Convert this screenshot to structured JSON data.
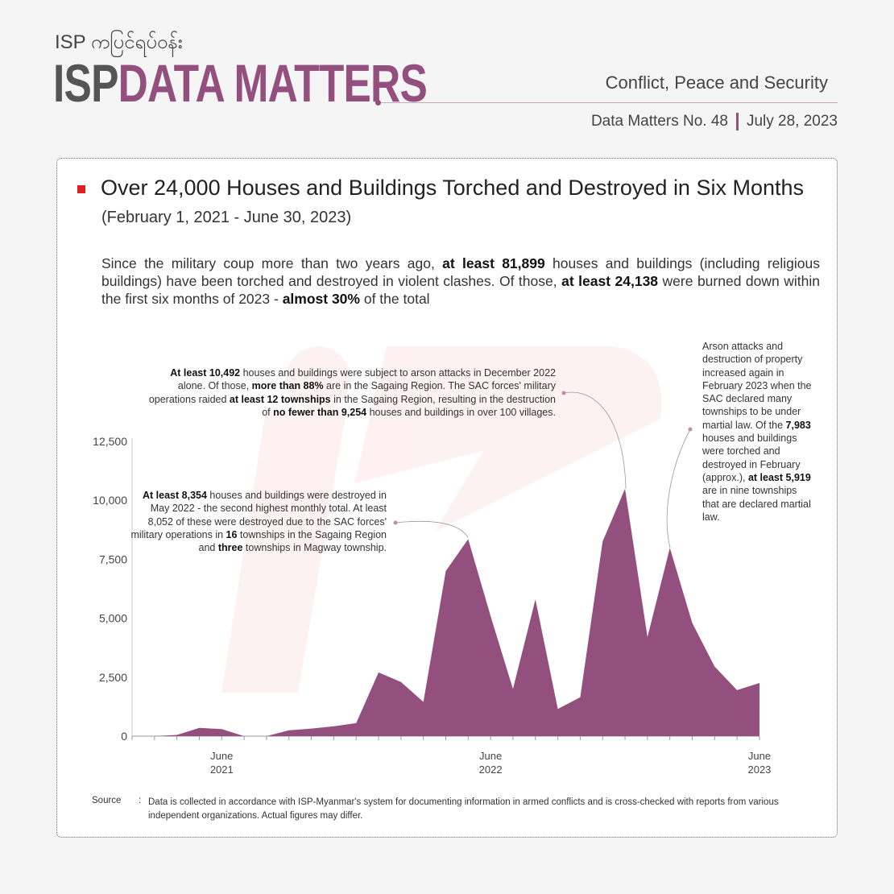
{
  "header": {
    "brand_sub": "ISP ကပြင်ရပ်ဝန်း",
    "brand_isp": "ISP",
    "brand_dm": "DATA MATTERS",
    "category": "Conflict, Peace and Security",
    "issue": "Data Matters No. 48",
    "date": "July 28, 2023"
  },
  "title": "Over 24,000 Houses and Buildings Torched and Destroyed in Six Months",
  "subtitle": "(February 1, 2021 - June 30, 2023)",
  "intro": [
    {
      "t": "Since the military coup more than two years ago, "
    },
    {
      "t": "at least 81,899",
      "b": true
    },
    {
      "t": " houses and buildings (including religious buildings) have been torched and destroyed in violent clashes. Of those, "
    },
    {
      "t": "at least 24,138",
      "b": true
    },
    {
      "t": " were burned down within the first six months of 2023 - "
    },
    {
      "t": "almost 30%",
      "b": true
    },
    {
      "t": " of the total"
    }
  ],
  "annotations": {
    "dec2022": [
      {
        "t": "At least 10,492",
        "b": true
      },
      {
        "t": " houses and buildings were subject to arson attacks in December 2022 alone. Of those, "
      },
      {
        "t": "more than 88%",
        "b": true
      },
      {
        "t": " are in the Sagaing Region. The SAC forces' military operations raided "
      },
      {
        "t": "at least 12 townships",
        "b": true
      },
      {
        "t": " in the Sagaing Region, resulting in the destruction of "
      },
      {
        "t": "no fewer than 9,254",
        "b": true
      },
      {
        "t": " houses and buildings in over 100 villages."
      }
    ],
    "may2022": [
      {
        "t": "At least 8,354",
        "b": true
      },
      {
        "t": " houses and buildings were destroyed in May 2022 - the second highest monthly total. At least 8,052 of these were destroyed due to the SAC forces' military operations in "
      },
      {
        "t": "16",
        "b": true
      },
      {
        "t": " townships in the Sagaing Region and "
      },
      {
        "t": "three",
        "b": true
      },
      {
        "t": " townships in Magway township."
      }
    ],
    "feb2023": [
      {
        "t": "Arson attacks and destruction of property increased again in February 2023 when the SAC declared many townships to be under martial law. Of the "
      },
      {
        "t": "7,983",
        "b": true
      },
      {
        "t": " houses and buildings were torched and destroyed in February (approx.), "
      },
      {
        "t": "at least 5,919",
        "b": true
      },
      {
        "t": " are in nine townships that are declared martial law."
      }
    ]
  },
  "source": {
    "label": "Source",
    "colon": ":",
    "text": "Data is collected in accordance with ISP-Myanmar's system for documenting information in armed conflicts and is cross-checked with reports from various independent organizations. Actual figures may differ."
  },
  "colors": {
    "area": "#93507f",
    "accent": "#e02020"
  },
  "chart_data": {
    "type": "area",
    "title": "Over 24,000 Houses and Buildings Torched and Destroyed in Six Months",
    "xlabel": "",
    "ylabel": "",
    "ylim": [
      0,
      12500
    ],
    "yticks": [
      "0",
      "2,500",
      "5,000",
      "7,500",
      "10,000",
      "12,500"
    ],
    "ytick_values": [
      0,
      2500,
      5000,
      7500,
      10000,
      12500
    ],
    "x": [
      "2021-02",
      "2021-03",
      "2021-04",
      "2021-05",
      "2021-06",
      "2021-07",
      "2021-08",
      "2021-09",
      "2021-10",
      "2021-11",
      "2021-12",
      "2022-01",
      "2022-02",
      "2022-03",
      "2022-04",
      "2022-05",
      "2022-06",
      "2022-07",
      "2022-08",
      "2022-09",
      "2022-10",
      "2022-11",
      "2022-12",
      "2023-01",
      "2023-02",
      "2023-03",
      "2023-04",
      "2023-05",
      "2023-06"
    ],
    "values": [
      0,
      0,
      50,
      350,
      300,
      0,
      0,
      250,
      320,
      420,
      550,
      2700,
      2300,
      1450,
      7000,
      8354,
      5100,
      2000,
      5800,
      1150,
      1650,
      8250,
      10492,
      4200,
      7983,
      4800,
      2950,
      1950,
      2255
    ],
    "xtick_labels": [
      {
        "index": 4,
        "line1": "June",
        "line2": "2021"
      },
      {
        "index": 16,
        "line1": "June",
        "line2": "2022"
      },
      {
        "index": 28,
        "line1": "June",
        "line2": "2023"
      }
    ],
    "grid": false,
    "legend": "none"
  }
}
